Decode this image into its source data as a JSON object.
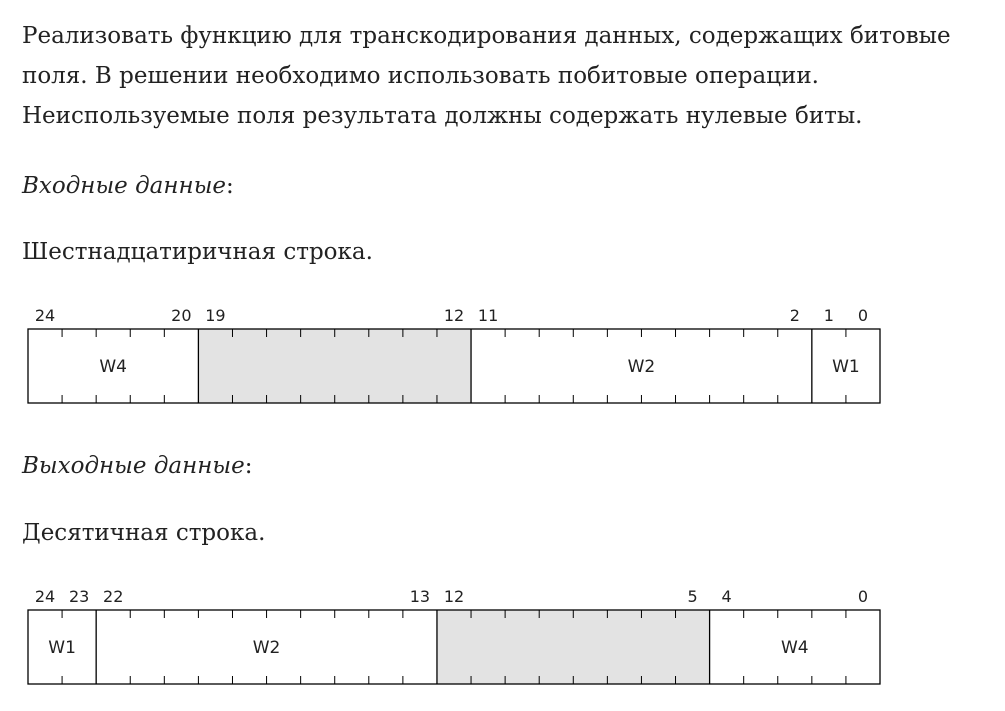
{
  "intro": {
    "line1": "Реализовать функцию для транскодирования данных, содержащих битовые",
    "line2": "поля. В решении необходимо использовать побитовые операции.",
    "line3": "Неиспользуемые поля результата должны содержать нулевые биты."
  },
  "input": {
    "heading": "Входные данные",
    "heading_suffix": ":",
    "description": "Шестнадцатиричная строка.",
    "register": {
      "total_bits": 25,
      "fields": [
        {
          "hi": 24,
          "lo": 20,
          "label": "W4",
          "unused": false
        },
        {
          "hi": 19,
          "lo": 12,
          "label": "",
          "unused": true
        },
        {
          "hi": 11,
          "lo": 2,
          "label": "W2",
          "unused": false
        },
        {
          "hi": 1,
          "lo": 0,
          "label": "W1",
          "unused": false
        }
      ],
      "bit_labels": [
        24,
        20,
        19,
        12,
        11,
        2,
        1,
        0
      ]
    }
  },
  "output": {
    "heading": "Выходные данные",
    "heading_suffix": ":",
    "description": "Десятичная строка.",
    "register": {
      "total_bits": 25,
      "fields": [
        {
          "hi": 24,
          "lo": 23,
          "label": "W1",
          "unused": false
        },
        {
          "hi": 22,
          "lo": 13,
          "label": "W2",
          "unused": false
        },
        {
          "hi": 12,
          "lo": 5,
          "label": "",
          "unused": true
        },
        {
          "hi": 4,
          "lo": 0,
          "label": "W4",
          "unused": false
        }
      ],
      "bit_labels": [
        24,
        23,
        22,
        13,
        12,
        5,
        4,
        0
      ]
    }
  },
  "colors": {
    "text": "#222222",
    "border": "#000000",
    "unused_fill": "#e3e3e3"
  }
}
